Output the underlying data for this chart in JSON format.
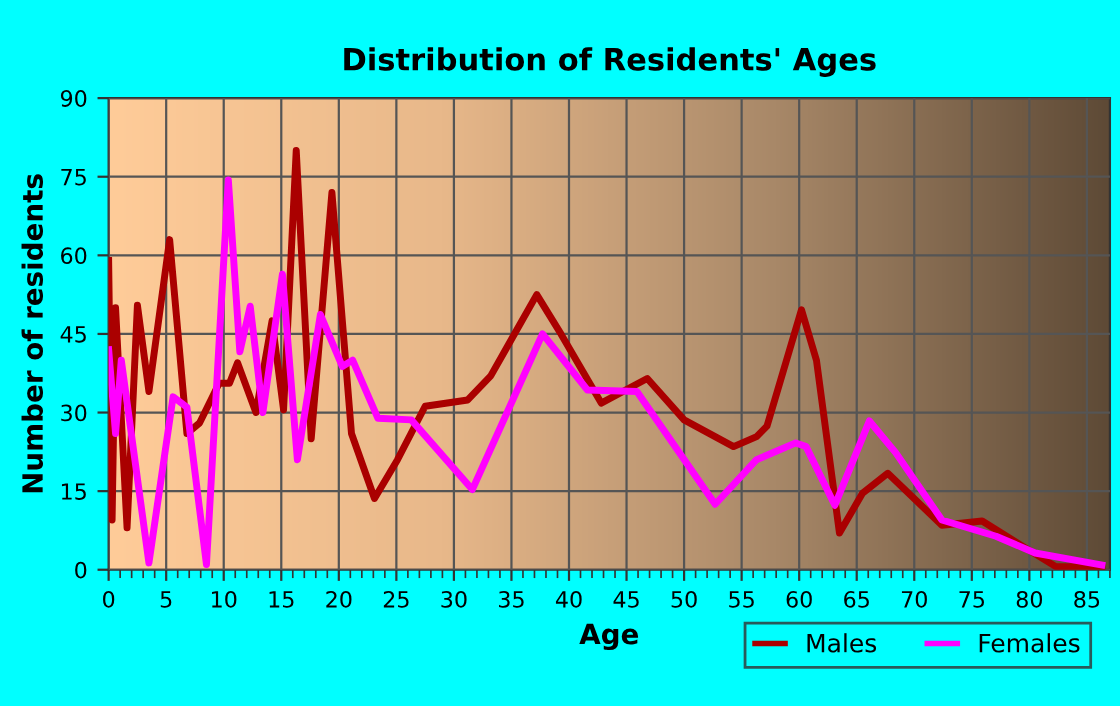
{
  "chart_data": {
    "type": "line",
    "title": "Distribution of Residents' Ages",
    "xlabel": "Age",
    "ylabel": "Number of residents",
    "xlim": [
      0,
      87
    ],
    "ylim": [
      0,
      90
    ],
    "xticks": [
      0,
      5,
      10,
      15,
      20,
      25,
      30,
      35,
      40,
      45,
      50,
      55,
      60,
      65,
      70,
      75,
      80,
      85
    ],
    "yticks": [
      0,
      15,
      30,
      45,
      60,
      75,
      90
    ],
    "grid": true,
    "legend": "bottom right",
    "marker": "none",
    "line_style": "solid",
    "series": [
      {
        "name": "Males",
        "color": "#aa0000",
        "x": [
          0,
          0.3,
          0.6,
          1.6,
          2.5,
          3.5,
          5.3,
          6.8,
          7.9,
          9.6,
          10.5,
          11.2,
          12.8,
          14.2,
          15.2,
          16.3,
          17.6,
          19.4,
          21.1,
          23.1,
          25.1,
          27.5,
          31.2,
          33.2,
          37.2,
          39.3,
          42.8,
          46.8,
          50,
          54.3,
          56.3,
          57.2,
          60.2,
          61.5,
          63.5,
          65.5,
          67.7,
          72.4,
          75.9,
          79.4,
          82.3,
          86.3
        ],
        "values": [
          59,
          9.5,
          50,
          8,
          50.5,
          34,
          63,
          26,
          28,
          35.6,
          35.6,
          39.5,
          30,
          47.5,
          30.5,
          80,
          25,
          72,
          26,
          13.6,
          21,
          31.2,
          32.4,
          37,
          52.5,
          45,
          31.8,
          36.5,
          28.6,
          23.5,
          25.4,
          27.4,
          49.6,
          40,
          7,
          14.6,
          18.4,
          8.5,
          9.3,
          4.5,
          0.6,
          0.6
        ]
      },
      {
        "name": "Females",
        "color": "#ff00ff",
        "x": [
          0,
          0.6,
          1.1,
          3.5,
          5.6,
          6.8,
          8.5,
          10.4,
          11.4,
          12.3,
          13.4,
          15.1,
          16.4,
          18.4,
          20.3,
          21.2,
          23.4,
          26.3,
          31.6,
          37.7,
          41.6,
          45.9,
          52.7,
          56.3,
          59.7,
          60.6,
          63.1,
          66.1,
          68.4,
          72.4,
          77.1,
          80.5,
          86.3
        ],
        "values": [
          42,
          26,
          40,
          1.3,
          33,
          31,
          1,
          74.4,
          41.6,
          50.3,
          30,
          56.4,
          21,
          48.7,
          38.8,
          40,
          28.9,
          28.6,
          15.3,
          45,
          34.3,
          34,
          12.5,
          21,
          24.2,
          23.5,
          12.3,
          28.4,
          22.3,
          9.5,
          6.4,
          3.2,
          0.9
        ]
      }
    ]
  }
}
